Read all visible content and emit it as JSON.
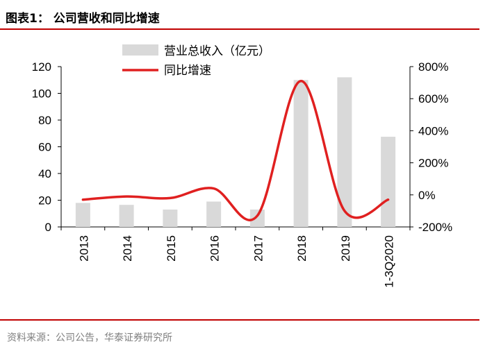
{
  "header": {
    "title": "图表1：  公司营收和同比增速"
  },
  "footer": {
    "source": "资料来源：公司公告，华泰证券研究所"
  },
  "chart_data": {
    "type": "bar+line",
    "categories": [
      "2013",
      "2014",
      "2015",
      "2016",
      "2017",
      "2018",
      "2019",
      "1-3Q2020"
    ],
    "series": [
      {
        "name": "营业总收入（亿元）",
        "type": "bar",
        "axis": "left",
        "values": [
          18,
          16.5,
          13,
          19,
          13,
          110,
          112,
          67.5
        ],
        "color": "#d9d9d9"
      },
      {
        "name": "同比增速",
        "type": "line",
        "axis": "right",
        "values": [
          -30,
          -10,
          -20,
          40,
          -130,
          710,
          -100,
          -30
        ],
        "color": "#e02020"
      }
    ],
    "y_left": {
      "min": 0,
      "max": 120,
      "ticks": [
        "0",
        "20",
        "40",
        "60",
        "80",
        "100",
        "120"
      ]
    },
    "y_right": {
      "min": -200,
      "max": 800,
      "ticks": [
        "-200%",
        "0%",
        "200%",
        "400%",
        "600%",
        "800%"
      ]
    },
    "legend_position": "top-center"
  }
}
